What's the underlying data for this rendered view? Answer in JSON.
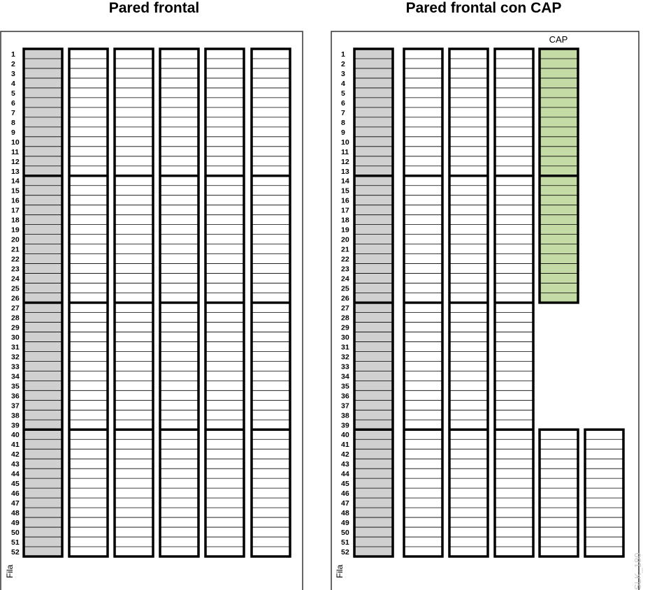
{
  "panels": [
    {
      "title": "Pared frontal",
      "cap_label": "",
      "axis_label": "Fila",
      "columns": [
        {
          "type": "gray",
          "rows": [
            1,
            52
          ]
        },
        {
          "type": "white",
          "rows": [
            1,
            52
          ]
        },
        {
          "type": "white",
          "rows": [
            1,
            52
          ]
        },
        {
          "type": "white",
          "rows": [
            1,
            52
          ]
        },
        {
          "type": "white",
          "rows": [
            1,
            52
          ]
        },
        {
          "type": "white",
          "rows": [
            1,
            52
          ]
        }
      ]
    },
    {
      "title": "Pared frontal con CAP",
      "cap_label": "CAP",
      "axis_label": "Fila",
      "columns": [
        {
          "type": "gray",
          "rows": [
            1,
            52
          ]
        },
        {
          "type": "white",
          "rows": [
            1,
            52
          ]
        },
        {
          "type": "white",
          "rows": [
            1,
            52
          ]
        },
        {
          "type": "white",
          "rows": [
            1,
            52
          ]
        },
        {
          "type": "cap",
          "rows": [
            1,
            26
          ],
          "extra": {
            "type": "white",
            "rows": [
              40,
              52
            ]
          }
        },
        {
          "type": "white",
          "rows": [
            40,
            52
          ]
        }
      ]
    }
  ],
  "row_count": 52,
  "section_breaks": [
    13,
    26,
    39
  ],
  "colors": {
    "gray_cell": "#d0d0d0",
    "cap_cell": "#c4dba6",
    "white_cell": "#ffffff",
    "line": "#000000"
  },
  "watermark": "SLK_180"
}
